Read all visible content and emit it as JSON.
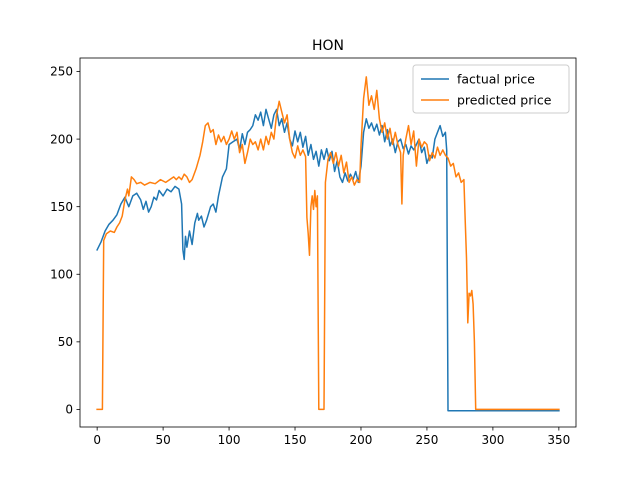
{
  "chart_data": {
    "type": "line",
    "title": "HON",
    "xlabel": "",
    "ylabel": "",
    "xlim": [
      -13,
      363
    ],
    "ylim": [
      -13,
      260
    ],
    "xticks": [
      0,
      50,
      100,
      150,
      200,
      250,
      300,
      350
    ],
    "yticks": [
      0,
      50,
      100,
      150,
      200,
      250
    ],
    "grid": false,
    "legend_position": "top-right",
    "series": [
      {
        "name": "factual price",
        "color": "#1f77b4",
        "points": [
          [
            0,
            118
          ],
          [
            3,
            124
          ],
          [
            6,
            132
          ],
          [
            9,
            137
          ],
          [
            12,
            140
          ],
          [
            15,
            144
          ],
          [
            18,
            152
          ],
          [
            21,
            157
          ],
          [
            24,
            150
          ],
          [
            27,
            158
          ],
          [
            30,
            160
          ],
          [
            33,
            155
          ],
          [
            35,
            148
          ],
          [
            37,
            154
          ],
          [
            39,
            146
          ],
          [
            41,
            150
          ],
          [
            43,
            157
          ],
          [
            45,
            155
          ],
          [
            47,
            162
          ],
          [
            50,
            158
          ],
          [
            53,
            163
          ],
          [
            56,
            161
          ],
          [
            59,
            165
          ],
          [
            62,
            163
          ],
          [
            64,
            152
          ],
          [
            65,
            118
          ],
          [
            66,
            111
          ],
          [
            67,
            128
          ],
          [
            68,
            120
          ],
          [
            70,
            132
          ],
          [
            72,
            122
          ],
          [
            74,
            138
          ],
          [
            76,
            145
          ],
          [
            77,
            140
          ],
          [
            79,
            143
          ],
          [
            81,
            135
          ],
          [
            83,
            140
          ],
          [
            86,
            150
          ],
          [
            88,
            152
          ],
          [
            90,
            146
          ],
          [
            92,
            158
          ],
          [
            95,
            172
          ],
          [
            98,
            178
          ],
          [
            100,
            196
          ],
          [
            103,
            198
          ],
          [
            106,
            200
          ],
          [
            108,
            192
          ],
          [
            110,
            204
          ],
          [
            112,
            196
          ],
          [
            114,
            205
          ],
          [
            116,
            207
          ],
          [
            118,
            210
          ],
          [
            120,
            218
          ],
          [
            122,
            214
          ],
          [
            124,
            220
          ],
          [
            126,
            210
          ],
          [
            128,
            222
          ],
          [
            130,
            215
          ],
          [
            132,
            208
          ],
          [
            134,
            218
          ],
          [
            136,
            222
          ],
          [
            138,
            210
          ],
          [
            140,
            215
          ],
          [
            142,
            205
          ],
          [
            144,
            212
          ],
          [
            146,
            200
          ],
          [
            148,
            195
          ],
          [
            150,
            206
          ],
          [
            152,
            198
          ],
          [
            154,
            205
          ],
          [
            156,
            194
          ],
          [
            158,
            202
          ],
          [
            160,
            188
          ],
          [
            162,
            196
          ],
          [
            164,
            185
          ],
          [
            166,
            191
          ],
          [
            168,
            180
          ],
          [
            170,
            192
          ],
          [
            172,
            185
          ],
          [
            174,
            193
          ],
          [
            176,
            184
          ],
          [
            178,
            191
          ],
          [
            180,
            176
          ],
          [
            182,
            184
          ],
          [
            184,
            172
          ],
          [
            186,
            168
          ],
          [
            188,
            175
          ],
          [
            190,
            169
          ],
          [
            192,
            174
          ],
          [
            194,
            170
          ],
          [
            196,
            176
          ],
          [
            198,
            168
          ],
          [
            200,
            180
          ],
          [
            202,
            205
          ],
          [
            204,
            215
          ],
          [
            206,
            208
          ],
          [
            208,
            212
          ],
          [
            210,
            206
          ],
          [
            212,
            211
          ],
          [
            214,
            203
          ],
          [
            216,
            210
          ],
          [
            218,
            198
          ],
          [
            220,
            207
          ],
          [
            222,
            195
          ],
          [
            224,
            200
          ],
          [
            226,
            190
          ],
          [
            228,
            198
          ],
          [
            230,
            200
          ],
          [
            232,
            193
          ],
          [
            234,
            196
          ],
          [
            236,
            189
          ],
          [
            238,
            195
          ],
          [
            240,
            192
          ],
          [
            242,
            196
          ],
          [
            244,
            200
          ],
          [
            246,
            190
          ],
          [
            248,
            194
          ],
          [
            250,
            182
          ],
          [
            252,
            188
          ],
          [
            254,
            186
          ],
          [
            256,
            200
          ],
          [
            258,
            205
          ],
          [
            260,
            210
          ],
          [
            262,
            202
          ],
          [
            264,
            205
          ],
          [
            265,
            192
          ],
          [
            266,
            -1
          ],
          [
            280,
            -1
          ],
          [
            300,
            -1
          ],
          [
            320,
            -1
          ],
          [
            335,
            -1
          ],
          [
            350,
            -1
          ]
        ]
      },
      {
        "name": "predicted price",
        "color": "#ff7f0e",
        "points": [
          [
            0,
            0
          ],
          [
            4,
            0
          ],
          [
            5,
            125
          ],
          [
            7,
            130
          ],
          [
            10,
            132
          ],
          [
            13,
            131
          ],
          [
            15,
            135
          ],
          [
            17,
            138
          ],
          [
            19,
            143
          ],
          [
            21,
            155
          ],
          [
            23,
            163
          ],
          [
            24,
            158
          ],
          [
            26,
            172
          ],
          [
            28,
            170
          ],
          [
            30,
            167
          ],
          [
            33,
            168
          ],
          [
            36,
            166
          ],
          [
            40,
            168
          ],
          [
            44,
            167
          ],
          [
            48,
            170
          ],
          [
            52,
            168
          ],
          [
            55,
            170
          ],
          [
            58,
            172
          ],
          [
            60,
            170
          ],
          [
            62,
            172
          ],
          [
            64,
            170
          ],
          [
            66,
            174
          ],
          [
            68,
            172
          ],
          [
            70,
            168
          ],
          [
            72,
            170
          ],
          [
            75,
            178
          ],
          [
            78,
            188
          ],
          [
            80,
            198
          ],
          [
            82,
            210
          ],
          [
            84,
            212
          ],
          [
            86,
            205
          ],
          [
            88,
            207
          ],
          [
            90,
            196
          ],
          [
            92,
            203
          ],
          [
            94,
            198
          ],
          [
            96,
            202
          ],
          [
            98,
            196
          ],
          [
            100,
            200
          ],
          [
            102,
            206
          ],
          [
            104,
            200
          ],
          [
            106,
            205
          ],
          [
            108,
            190
          ],
          [
            110,
            196
          ],
          [
            112,
            182
          ],
          [
            114,
            190
          ],
          [
            116,
            200
          ],
          [
            118,
            196
          ],
          [
            120,
            198
          ],
          [
            122,
            192
          ],
          [
            124,
            200
          ],
          [
            126,
            192
          ],
          [
            128,
            202
          ],
          [
            130,
            196
          ],
          [
            132,
            205
          ],
          [
            134,
            200
          ],
          [
            136,
            218
          ],
          [
            138,
            228
          ],
          [
            140,
            220
          ],
          [
            142,
            212
          ],
          [
            144,
            218
          ],
          [
            146,
            200
          ],
          [
            148,
            190
          ],
          [
            150,
            186
          ],
          [
            152,
            195
          ],
          [
            154,
            188
          ],
          [
            156,
            192
          ],
          [
            158,
            187
          ],
          [
            159,
            142
          ],
          [
            160,
            130
          ],
          [
            161,
            114
          ],
          [
            162,
            150
          ],
          [
            163,
            158
          ],
          [
            164,
            148
          ],
          [
            165,
            162
          ],
          [
            166,
            150
          ],
          [
            167,
            158
          ],
          [
            168,
            0
          ],
          [
            172,
            0
          ],
          [
            173,
            168
          ],
          [
            175,
            185
          ],
          [
            177,
            190
          ],
          [
            179,
            182
          ],
          [
            181,
            190
          ],
          [
            183,
            180
          ],
          [
            185,
            188
          ],
          [
            187,
            175
          ],
          [
            189,
            183
          ],
          [
            191,
            168
          ],
          [
            193,
            172
          ],
          [
            195,
            166
          ],
          [
            197,
            170
          ],
          [
            199,
            168
          ],
          [
            200,
            195
          ],
          [
            202,
            230
          ],
          [
            204,
            246
          ],
          [
            206,
            225
          ],
          [
            208,
            232
          ],
          [
            210,
            222
          ],
          [
            212,
            236
          ],
          [
            214,
            215
          ],
          [
            216,
            205
          ],
          [
            218,
            212
          ],
          [
            220,
            200
          ],
          [
            222,
            208
          ],
          [
            224,
            196
          ],
          [
            226,
            205
          ],
          [
            228,
            196
          ],
          [
            230,
            190
          ],
          [
            231,
            152
          ],
          [
            232,
            188
          ],
          [
            234,
            200
          ],
          [
            236,
            210
          ],
          [
            238,
            196
          ],
          [
            240,
            206
          ],
          [
            242,
            180
          ],
          [
            244,
            200
          ],
          [
            246,
            194
          ],
          [
            248,
            198
          ],
          [
            250,
            196
          ],
          [
            252,
            184
          ],
          [
            254,
            190
          ],
          [
            256,
            186
          ],
          [
            258,
            194
          ],
          [
            260,
            188
          ],
          [
            262,
            192
          ],
          [
            264,
            188
          ],
          [
            266,
            186
          ],
          [
            268,
            180
          ],
          [
            270,
            182
          ],
          [
            272,
            172
          ],
          [
            274,
            175
          ],
          [
            276,
            168
          ],
          [
            278,
            170
          ],
          [
            279,
            140
          ],
          [
            280,
            112
          ],
          [
            281,
            64
          ],
          [
            282,
            86
          ],
          [
            283,
            84
          ],
          [
            284,
            88
          ],
          [
            285,
            78
          ],
          [
            286,
            50
          ],
          [
            287,
            0
          ],
          [
            300,
            0
          ],
          [
            320,
            0
          ],
          [
            335,
            0
          ],
          [
            350,
            0
          ]
        ]
      }
    ]
  }
}
